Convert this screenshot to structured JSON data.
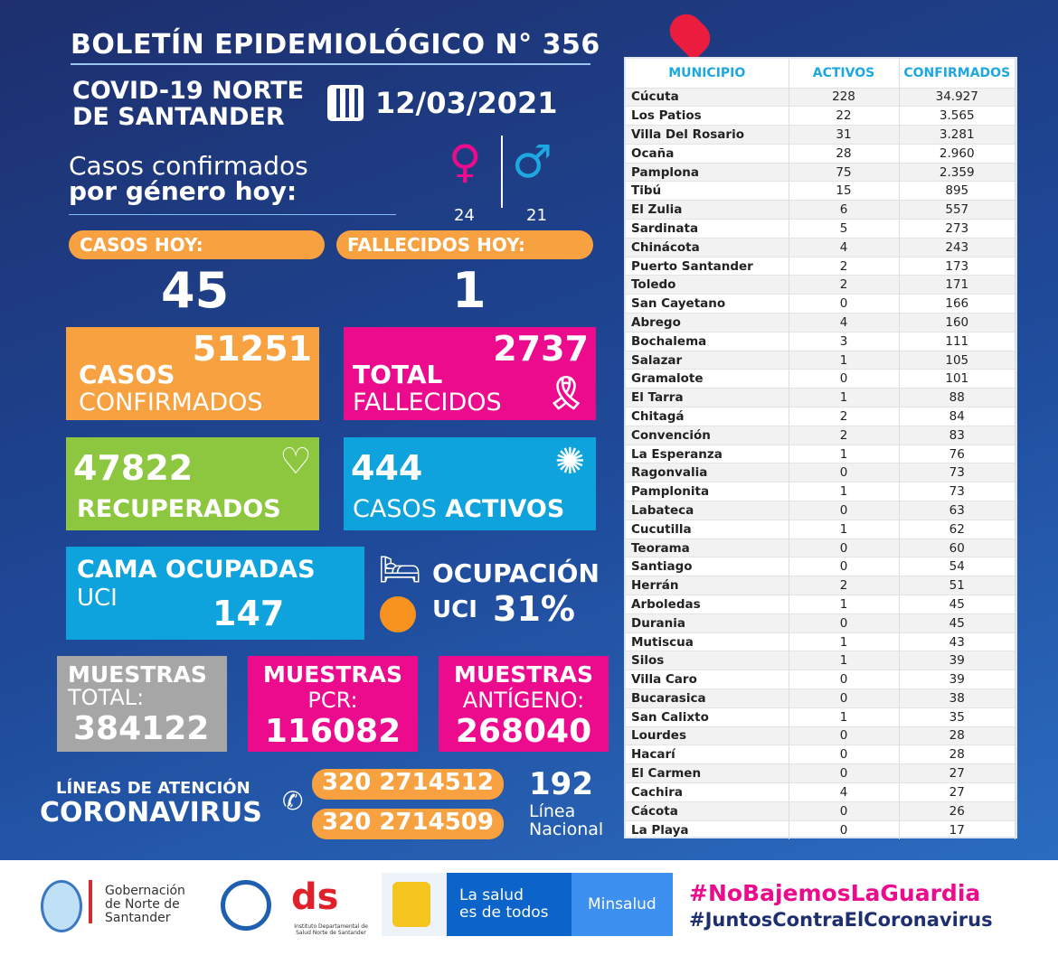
{
  "header": {
    "title": "BOLETÍN EPIDEMIOLÓGICO N° 356",
    "subtitle_line1": "COVID-19 NORTE",
    "subtitle_line2": "DE SANTANDER",
    "date": "12/03/2021"
  },
  "gender": {
    "label_line1": "Casos confirmados",
    "label_line2": "por género hoy:",
    "female": "24",
    "male": "21"
  },
  "today": {
    "cases_label": "CASOS HOY:",
    "cases": "45",
    "deaths_label": "FALLECIDOS HOY:",
    "deaths": "1"
  },
  "stats": {
    "confirmed": {
      "value": "51251",
      "label1": "CASOS",
      "label2": "CONFIRMADOS"
    },
    "deaths_total": {
      "value": "2737",
      "label1": "TOTAL",
      "label2": "FALLECIDOS"
    },
    "recovered": {
      "value": "47822",
      "label": "RECUPERADOS"
    },
    "active": {
      "value": "444",
      "label1": "CASOS",
      "label2": "ACTIVOS"
    },
    "icu_beds": {
      "label1": "CAMA OCUPADAS",
      "label2": "UCI",
      "value": "147"
    },
    "icu_occupancy": {
      "label1": "OCUPACIÓN",
      "label2": "UCI",
      "value": "31%"
    }
  },
  "samples": [
    {
      "label1": "MUESTRAS",
      "label2": "TOTAL:",
      "value": "384122",
      "color": "#a6a6a6"
    },
    {
      "label1": "MUESTRAS",
      "label2": "PCR:",
      "value": "116082",
      "color": "#ec0b8c"
    },
    {
      "label1": "MUESTRAS",
      "label2": "ANTÍGENO:",
      "value": "268040",
      "color": "#ec0b8c"
    }
  ],
  "hotline": {
    "label1": "LÍNEAS DE ATENCIÓN",
    "label2": "CORONAVIRUS",
    "phone1": "320 2714512",
    "phone2": "320 2714509",
    "national": "192",
    "national_label1": "Línea",
    "national_label2": "Nacional"
  },
  "table": {
    "headers": [
      "MUNICIPIO",
      "ACTIVOS",
      "CONFIRMADOS"
    ],
    "rows": [
      [
        "Cúcuta",
        "228",
        "34.927"
      ],
      [
        "Los Patios",
        "22",
        "3.565"
      ],
      [
        "Villa Del Rosario",
        "31",
        "3.281"
      ],
      [
        "Ocaña",
        "28",
        "2.960"
      ],
      [
        "Pamplona",
        "75",
        "2.359"
      ],
      [
        "Tibú",
        "15",
        "895"
      ],
      [
        "El Zulia",
        "6",
        "557"
      ],
      [
        "Sardinata",
        "5",
        "273"
      ],
      [
        "Chinácota",
        "4",
        "243"
      ],
      [
        "Puerto Santander",
        "2",
        "173"
      ],
      [
        "Toledo",
        "2",
        "171"
      ],
      [
        "San Cayetano",
        "0",
        "166"
      ],
      [
        "Abrego",
        "4",
        "160"
      ],
      [
        "Bochalema",
        "3",
        "111"
      ],
      [
        "Salazar",
        "1",
        "105"
      ],
      [
        "Gramalote",
        "0",
        "101"
      ],
      [
        "El Tarra",
        "1",
        "88"
      ],
      [
        "Chitagá",
        "2",
        "84"
      ],
      [
        "Convención",
        "2",
        "83"
      ],
      [
        "La Esperanza",
        "1",
        "76"
      ],
      [
        "Ragonvalia",
        "0",
        "73"
      ],
      [
        "Pamplonita",
        "1",
        "73"
      ],
      [
        "Labateca",
        "0",
        "63"
      ],
      [
        "Cucutilla",
        "1",
        "62"
      ],
      [
        "Teorama",
        "0",
        "60"
      ],
      [
        "Santiago",
        "0",
        "54"
      ],
      [
        "Herrán",
        "2",
        "51"
      ],
      [
        "Arboledas",
        "1",
        "45"
      ],
      [
        "Durania",
        "0",
        "45"
      ],
      [
        "Mutiscua",
        "1",
        "43"
      ],
      [
        "Silos",
        "1",
        "39"
      ],
      [
        "Villa Caro",
        "0",
        "39"
      ],
      [
        "Bucarasica",
        "0",
        "38"
      ],
      [
        "San Calixto",
        "1",
        "35"
      ],
      [
        "Lourdes",
        "0",
        "28"
      ],
      [
        "Hacarí",
        "0",
        "28"
      ],
      [
        "El Carmen",
        "0",
        "27"
      ],
      [
        "Cachira",
        "4",
        "27"
      ],
      [
        "Cácota",
        "0",
        "26"
      ],
      [
        "La Playa",
        "0",
        "17"
      ]
    ]
  },
  "footer": {
    "gob_line1": "Gobernación",
    "gob_line2": "de Norte de",
    "gob_line3": "Santander",
    "ids_caption": "Instituto Departamental de Salud Norte de Santander",
    "salud_line1": "La salud",
    "salud_line2": "es de todos",
    "minsalud": "Minsalud",
    "hashtag1": "#NoBajemosLaGuardia",
    "hashtag2": "#JuntosContraElCoronavirus"
  }
}
